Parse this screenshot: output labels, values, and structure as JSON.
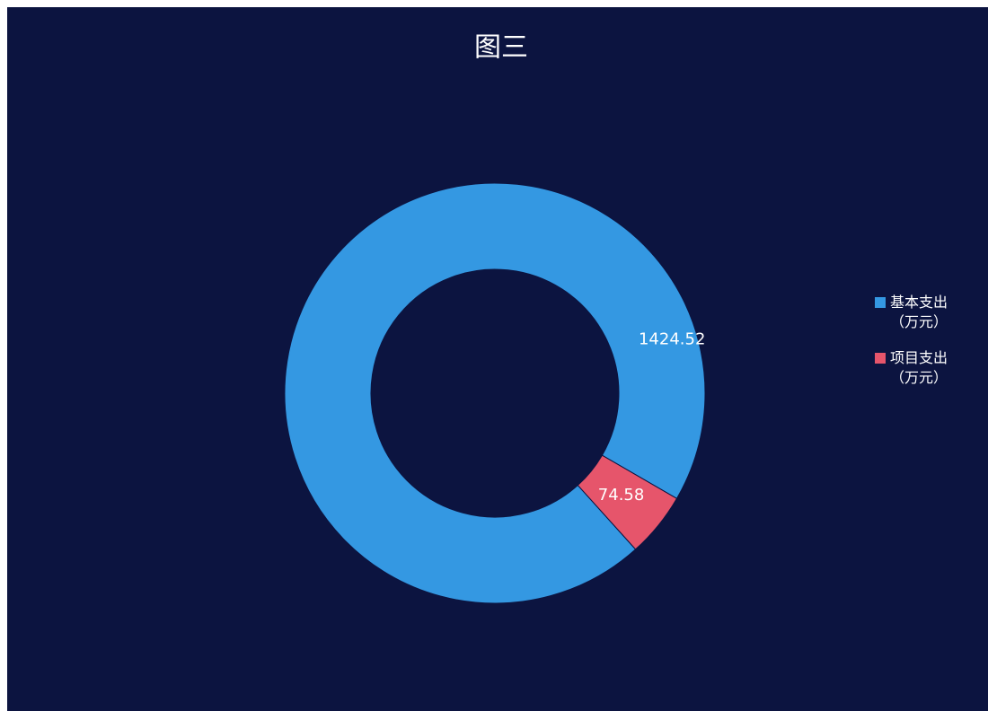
{
  "chart_data": {
    "type": "pie",
    "title": "图三",
    "categories": [
      "基本支出（万元）",
      "项目支出（万元）"
    ],
    "values": [
      1424.52,
      74.58
    ],
    "colors": [
      "#3498e2",
      "#e6556b"
    ],
    "donut": true,
    "legend": "right"
  }
}
